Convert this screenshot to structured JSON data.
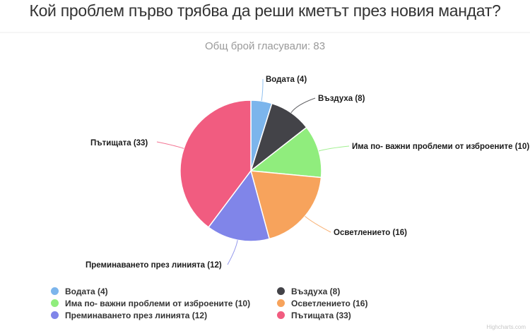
{
  "title": "Кой проблем първо трябва да реши кметът през новия мандат?",
  "subtitle": "Общ брой гласували: 83",
  "credits": "Highcharts.com",
  "chart_data": {
    "type": "pie",
    "title": "Кой проблем първо трябва да реши кметът през новия мандат?",
    "subtitle": "Общ брой гласували: 83",
    "total": 83,
    "categories": [
      "Водата",
      "Въздуха",
      "Има по- важни проблеми от изброените",
      "Осветлението",
      "Преминаването през линията",
      "Пътищата"
    ],
    "values": [
      4,
      8,
      10,
      16,
      12,
      33
    ],
    "colors": [
      "#7cb5ec",
      "#434348",
      "#90ed7d",
      "#f7a35c",
      "#8085e9",
      "#f15c80"
    ],
    "data_labels": [
      "Водата (4)",
      "Въздуха (8)",
      "Има по- важни проблеми от изброените (10)",
      "Осветлението (16)",
      "Преминаването през линията (12)",
      "Пътищата (33)"
    ],
    "legend_position": "bottom",
    "start_angle": 0,
    "direction": "clockwise"
  },
  "legend": {
    "items": [
      {
        "label": "Водата (4)",
        "color": "#7cb5ec"
      },
      {
        "label": "Въздуха (8)",
        "color": "#434348"
      },
      {
        "label": "Има по- важни проблеми от изброените (10)",
        "color": "#90ed7d"
      },
      {
        "label": "Осветлението (16)",
        "color": "#f7a35c"
      },
      {
        "label": "Преминаването през линията (12)",
        "color": "#8085e9"
      },
      {
        "label": "Пътищата (33)",
        "color": "#f15c80"
      }
    ]
  }
}
